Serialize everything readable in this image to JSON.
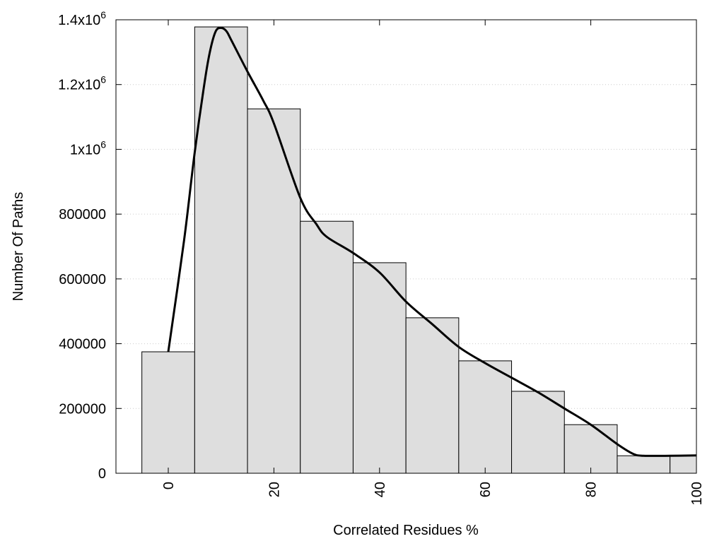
{
  "chart_data": {
    "type": "bar",
    "title": "",
    "xlabel": "Correlated Residues %",
    "ylabel": "Number Of Paths",
    "xlim": [
      -10,
      100
    ],
    "ylim": [
      0,
      1400000
    ],
    "grid": "horizontal dotted",
    "x_ticks": [
      0,
      20,
      40,
      60,
      80,
      100
    ],
    "y_ticks": [
      {
        "value": 0,
        "label": "0"
      },
      {
        "value": 200000,
        "label": "200000"
      },
      {
        "value": 400000,
        "label": "400000"
      },
      {
        "value": 600000,
        "label": "600000"
      },
      {
        "value": 800000,
        "label": "800000"
      },
      {
        "value": 1000000,
        "label": "1x10",
        "exp": "6"
      },
      {
        "value": 1200000,
        "label": "1.2x10",
        "exp": "6"
      },
      {
        "value": 1400000,
        "label": "1.4x10",
        "exp": "6"
      }
    ],
    "bin_width": 10,
    "categories": [
      0,
      10,
      20,
      30,
      40,
      50,
      60,
      70,
      80,
      90,
      100
    ],
    "values": [
      375000,
      1378000,
      1125000,
      778000,
      650000,
      480000,
      347000,
      253000,
      150000,
      54000,
      54000
    ],
    "curve": {
      "x": [
        0,
        3,
        5,
        7,
        8,
        9,
        10,
        11,
        12,
        15,
        18,
        20,
        25,
        28,
        30,
        35,
        40,
        45,
        50,
        55,
        60,
        65,
        70,
        75,
        80,
        85,
        88,
        90,
        95,
        100
      ],
      "y": [
        375000,
        720000,
        990000,
        1220000,
        1310000,
        1365000,
        1375000,
        1365000,
        1335000,
        1240000,
        1150000,
        1080000,
        850000,
        770000,
        730000,
        680000,
        620000,
        530000,
        460000,
        390000,
        340000,
        295000,
        250000,
        200000,
        150000,
        90000,
        60000,
        54000,
        54000,
        55000
      ]
    },
    "colors": {
      "bar_fill": "#dedede",
      "bar_stroke": "#000000",
      "curve": "#000000",
      "grid": "#cccccc"
    }
  }
}
